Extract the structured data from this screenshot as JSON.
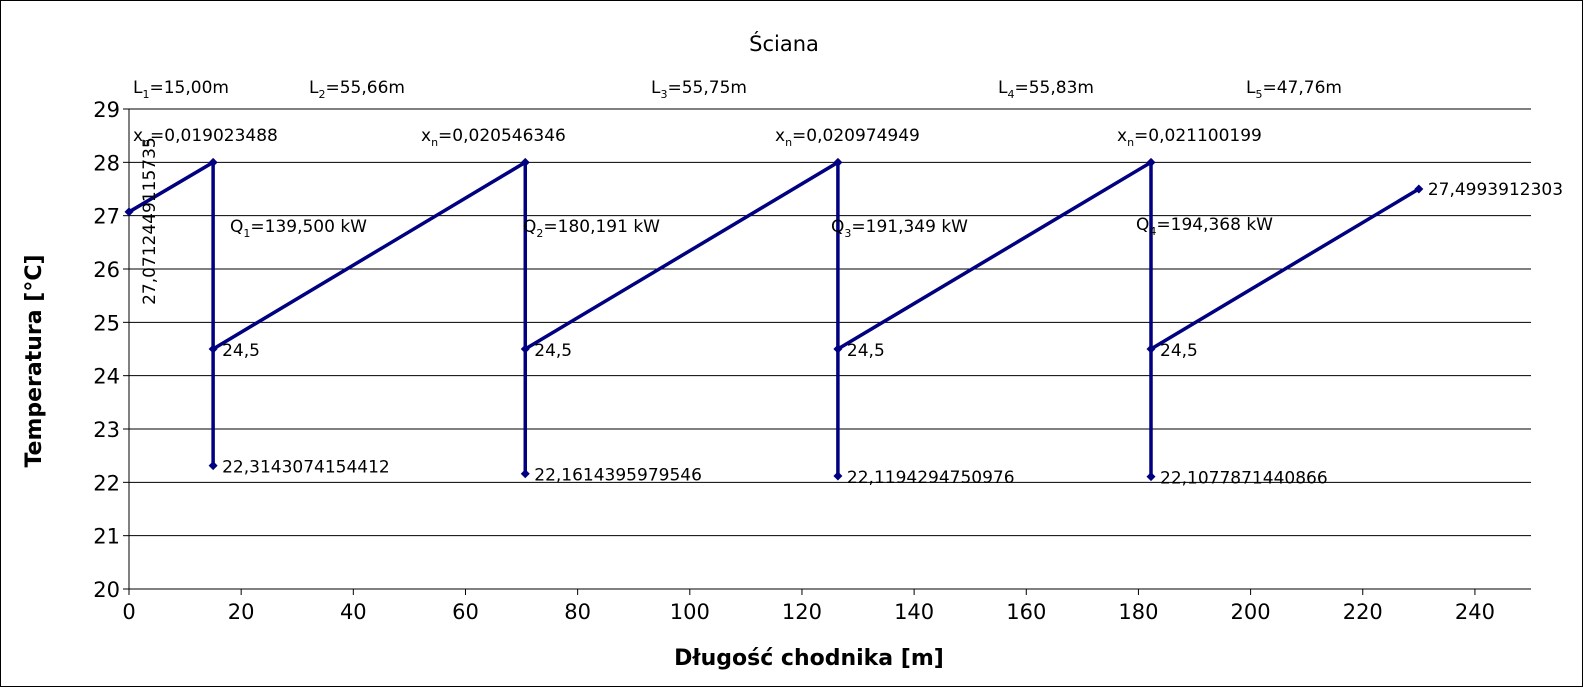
{
  "chart_data": {
    "type": "line",
    "title": "Ściana",
    "xlabel": "Długość chodnika [m]",
    "ylabel": "Temperatura [°C]",
    "xlim": [
      0,
      250
    ],
    "ylim": [
      20,
      29
    ],
    "x_ticks": [
      0,
      20,
      40,
      60,
      80,
      100,
      120,
      140,
      160,
      180,
      200,
      220,
      240
    ],
    "y_ticks": [
      20,
      21,
      22,
      23,
      24,
      25,
      26,
      27,
      28,
      29
    ],
    "grid": "horizontal",
    "legend": "none",
    "series": [
      {
        "color": "#000080",
        "points": [
          [
            0,
            27.07
          ],
          [
            15.0,
            28
          ],
          [
            15.0,
            22.3143074154412
          ],
          [
            15.0,
            24.5
          ],
          [
            70.66,
            28
          ],
          [
            70.66,
            22.1614395979546
          ],
          [
            70.66,
            24.5
          ],
          [
            126.41,
            28
          ],
          [
            126.41,
            22.1194294750976
          ],
          [
            126.41,
            24.5
          ],
          [
            182.24,
            28
          ],
          [
            182.24,
            22.1077871440866
          ],
          [
            182.24,
            24.5
          ],
          [
            230.0,
            27.4993912303
          ]
        ]
      }
    ],
    "data_labels": [
      {
        "text": "27,0712449115735",
        "x": 0,
        "y": 27.07
      },
      {
        "text": "22,3143074154412",
        "x": 15.0,
        "y": 22.3143074154412
      },
      {
        "text": "24,5",
        "x": 15.0,
        "y": 24.5
      },
      {
        "text": "22,1614395979546",
        "x": 70.66,
        "y": 22.1614395979546
      },
      {
        "text": "24,5",
        "x": 70.66,
        "y": 24.5
      },
      {
        "text": "22,1194294750976",
        "x": 126.41,
        "y": 22.1194294750976
      },
      {
        "text": "24,5",
        "x": 126.41,
        "y": 24.5
      },
      {
        "text": "22,1077871440866",
        "x": 182.24,
        "y": 22.1077871440866
      },
      {
        "text": "24,5",
        "x": 182.24,
        "y": 24.5
      },
      {
        "text": "27,4993912303",
        "x": 230.0,
        "y": 27.4993912303
      }
    ],
    "annotations": {
      "lengths": [
        {
          "base": "L",
          "sub": "1",
          "rest": "=15,00m"
        },
        {
          "base": "L",
          "sub": "2",
          "rest": "=55,66m"
        },
        {
          "base": "L",
          "sub": "3",
          "rest": "=55,75m"
        },
        {
          "base": "L",
          "sub": "4",
          "rest": "=55,83m"
        },
        {
          "base": "L",
          "sub": "5",
          "rest": "=47,76m"
        }
      ],
      "xn": [
        {
          "base": "x",
          "sub": "n",
          "rest": "=0,019023488"
        },
        {
          "base": "x",
          "sub": "n",
          "rest": "=0,020546346"
        },
        {
          "base": "x",
          "sub": "n",
          "rest": "=0,020974949"
        },
        {
          "base": "x",
          "sub": "n",
          "rest": "=0,021100199"
        }
      ],
      "heat": [
        {
          "base": "Q",
          "sub": "1",
          "rest": "=139,500 kW"
        },
        {
          "base": "Q",
          "sub": "2",
          "rest": "=180,191 kW"
        },
        {
          "base": "Q",
          "sub": "3",
          "rest": "=191,349 kW"
        },
        {
          "base": "Q",
          "sub": "4",
          "rest": "=194,368 kW"
        }
      ]
    }
  }
}
